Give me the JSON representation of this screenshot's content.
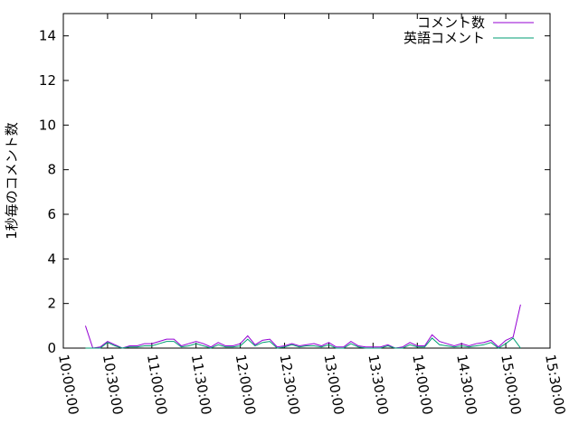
{
  "chart_data": {
    "type": "line",
    "title": "",
    "xlabel": "",
    "ylabel": "1秒毎のコメント数",
    "xlim": [
      "10:00:00",
      "15:30:00"
    ],
    "ylim": [
      0,
      15
    ],
    "x_ticks": [
      "10:00:00",
      "10:30:00",
      "11:00:00",
      "11:30:00",
      "12:00:00",
      "12:30:00",
      "13:00:00",
      "13:30:00",
      "14:00:00",
      "14:30:00",
      "15:00:00",
      "15:30:00"
    ],
    "y_ticks": [
      0,
      2,
      4,
      6,
      8,
      10,
      12,
      14
    ],
    "grid": false,
    "legend_position": "top-right",
    "x": [
      "10:15",
      "10:20",
      "10:25",
      "10:30",
      "10:35",
      "10:40",
      "10:45",
      "10:50",
      "10:55",
      "11:00",
      "11:05",
      "11:10",
      "11:15",
      "11:20",
      "11:25",
      "11:30",
      "11:35",
      "11:40",
      "11:45",
      "11:50",
      "11:55",
      "12:00",
      "12:05",
      "12:10",
      "12:15",
      "12:20",
      "12:25",
      "12:30",
      "12:35",
      "12:40",
      "12:45",
      "12:50",
      "12:55",
      "13:00",
      "13:05",
      "13:10",
      "13:15",
      "13:20",
      "13:25",
      "13:30",
      "13:35",
      "13:40",
      "13:45",
      "13:50",
      "13:55",
      "14:00",
      "14:05",
      "14:10",
      "14:15",
      "14:20",
      "14:25",
      "14:30",
      "14:35",
      "14:40",
      "14:45",
      "14:50",
      "14:55",
      "15:00",
      "15:05",
      "15:10"
    ],
    "series": [
      {
        "name": "コメント数",
        "color": "#9400d3",
        "values": [
          1.0,
          0.0,
          0.05,
          0.3,
          0.15,
          0.0,
          0.1,
          0.1,
          0.2,
          0.2,
          0.3,
          0.4,
          0.4,
          0.1,
          0.2,
          0.3,
          0.2,
          0.05,
          0.25,
          0.1,
          0.1,
          0.2,
          0.55,
          0.15,
          0.35,
          0.4,
          0.05,
          0.1,
          0.2,
          0.1,
          0.15,
          0.2,
          0.1,
          0.25,
          0.05,
          0.05,
          0.3,
          0.1,
          0.05,
          0.05,
          0.05,
          0.15,
          0.0,
          0.05,
          0.25,
          0.1,
          0.1,
          0.6,
          0.3,
          0.2,
          0.1,
          0.2,
          0.1,
          0.2,
          0.25,
          0.35,
          0.05,
          0.35,
          0.5,
          1.95
        ]
      },
      {
        "name": "英語コメント",
        "color": "#009e73",
        "values": [
          0.0,
          0.0,
          0.0,
          0.25,
          0.1,
          0.0,
          0.05,
          0.05,
          0.1,
          0.1,
          0.2,
          0.3,
          0.3,
          0.05,
          0.1,
          0.2,
          0.1,
          0.0,
          0.15,
          0.05,
          0.05,
          0.1,
          0.4,
          0.1,
          0.25,
          0.3,
          0.0,
          0.05,
          0.15,
          0.05,
          0.1,
          0.1,
          0.05,
          0.15,
          0.0,
          0.0,
          0.2,
          0.05,
          0.0,
          0.0,
          0.0,
          0.1,
          0.0,
          0.0,
          0.15,
          0.05,
          0.05,
          0.45,
          0.15,
          0.1,
          0.05,
          0.1,
          0.05,
          0.1,
          0.15,
          0.25,
          0.0,
          0.2,
          0.45,
          0.0
        ]
      }
    ]
  }
}
